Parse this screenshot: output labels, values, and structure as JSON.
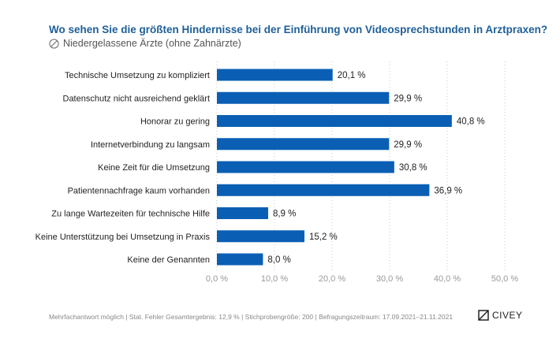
{
  "header": {
    "title": "Wo sehen Sie die größten Hindernisse bei der Einführung von Videosprechstunden in Arztpraxen?",
    "subtitle": "Niedergelassene Ärzte (ohne Zahnärzte)",
    "subtitle_icon": "people-icon"
  },
  "footer": {
    "note": "Mehrfachantwort möglich | Stat. Fehler Gesamtergebnis: 12,9 % | Stichprobengröße: 200 | Befragungszeitraum: 17.09.2021–21.11.2021",
    "brand": "CIVEY"
  },
  "chart_data": {
    "type": "bar",
    "orientation": "horizontal",
    "categories": [
      "Technische Umsetzung zu kompliziert",
      "Datenschutz nicht ausreichend geklärt",
      "Honorar zu gering",
      "Internetverbindung zu langsam",
      "Keine Zeit für die Umsetzung",
      "Patientennachfrage kaum vorhanden",
      "Zu lange Wartezeiten für technische Hilfe",
      "Keine Unterstützung bei Umsetzung in Praxis",
      "Keine der Genannten"
    ],
    "values": [
      20.1,
      29.9,
      40.8,
      29.9,
      30.8,
      36.9,
      8.9,
      15.2,
      8.0
    ],
    "value_labels": [
      "20,1 %",
      "29,9 %",
      "40,8 %",
      "29,9 %",
      "30,8 %",
      "36,9 %",
      "8,9 %",
      "15,2 %",
      "8,0 %"
    ],
    "xlim": [
      0,
      50
    ],
    "xticks": [
      0,
      10,
      20,
      30,
      40,
      50
    ],
    "xtick_labels": [
      "0,0 %",
      "10,0 %",
      "20,0 %",
      "30,0 %",
      "40,0 %",
      "50,0 %"
    ],
    "bar_color": "#0a5fb4",
    "grid": "vertical-dotted"
  }
}
